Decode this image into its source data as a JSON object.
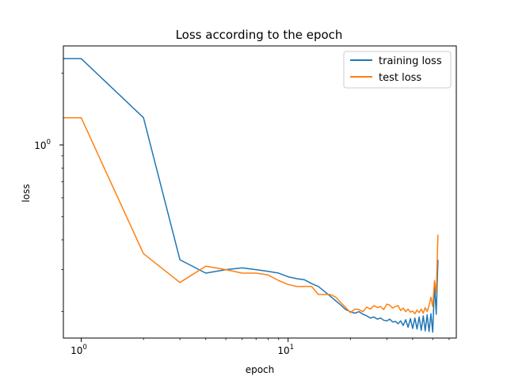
{
  "chart_data": {
    "type": "line",
    "title": "Loss according to the epoch",
    "xlabel": "epoch",
    "ylabel": "loss",
    "xscale": "log",
    "yscale": "log",
    "xlim": [
      0.82,
      65
    ],
    "ylim": [
      0.155,
      2.6
    ],
    "x_ticks": [
      {
        "value": 1,
        "base": "10",
        "exp": "0"
      },
      {
        "value": 10,
        "base": "10",
        "exp": "1"
      }
    ],
    "y_ticks": [
      {
        "value": 1,
        "base": "10",
        "exp": "0"
      }
    ],
    "grid": false,
    "legend_position": "top-right",
    "series": [
      {
        "name": "training loss",
        "color": "#1f77b4",
        "x": [
          0.82,
          1,
          2,
          3,
          4,
          5,
          6,
          7,
          8,
          9,
          10,
          11,
          12,
          13,
          14,
          15,
          16,
          17,
          18,
          19,
          20,
          21,
          22,
          23,
          24,
          25,
          26,
          27,
          28,
          29,
          30,
          31,
          32,
          33,
          34,
          35,
          36,
          37,
          38,
          39,
          40,
          41,
          42,
          43,
          44,
          45,
          46,
          47,
          48,
          49,
          50,
          51,
          52,
          53
        ],
        "values": [
          2.3,
          2.3,
          1.3,
          0.33,
          0.29,
          0.3,
          0.305,
          0.3,
          0.295,
          0.29,
          0.28,
          0.275,
          0.272,
          0.262,
          0.255,
          0.243,
          0.232,
          0.222,
          0.213,
          0.204,
          0.2,
          0.197,
          0.2,
          0.195,
          0.192,
          0.188,
          0.19,
          0.186,
          0.188,
          0.184,
          0.183,
          0.186,
          0.181,
          0.182,
          0.178,
          0.183,
          0.175,
          0.185,
          0.172,
          0.187,
          0.17,
          0.188,
          0.169,
          0.19,
          0.167,
          0.192,
          0.166,
          0.194,
          0.165,
          0.196,
          0.164,
          0.26,
          0.195,
          0.33
        ]
      },
      {
        "name": "test loss",
        "color": "#ff7f0e",
        "x": [
          0.82,
          1,
          2,
          3,
          4,
          5,
          6,
          7,
          8,
          9,
          10,
          11,
          12,
          13,
          14,
          15,
          16,
          17,
          18,
          19,
          20,
          21,
          22,
          23,
          24,
          25,
          26,
          27,
          28,
          29,
          30,
          31,
          32,
          33,
          34,
          35,
          36,
          37,
          38,
          39,
          40,
          41,
          42,
          43,
          44,
          45,
          46,
          47,
          48,
          49,
          50,
          51,
          52,
          53
        ],
        "values": [
          1.3,
          1.3,
          0.35,
          0.265,
          0.31,
          0.3,
          0.29,
          0.29,
          0.285,
          0.27,
          0.26,
          0.255,
          0.255,
          0.255,
          0.236,
          0.236,
          0.236,
          0.23,
          0.218,
          0.208,
          0.198,
          0.205,
          0.204,
          0.2,
          0.209,
          0.205,
          0.212,
          0.208,
          0.21,
          0.204,
          0.215,
          0.213,
          0.207,
          0.21,
          0.212,
          0.202,
          0.207,
          0.2,
          0.205,
          0.199,
          0.201,
          0.196,
          0.203,
          0.198,
          0.205,
          0.197,
          0.208,
          0.2,
          0.212,
          0.23,
          0.21,
          0.27,
          0.24,
          0.42
        ]
      }
    ]
  }
}
